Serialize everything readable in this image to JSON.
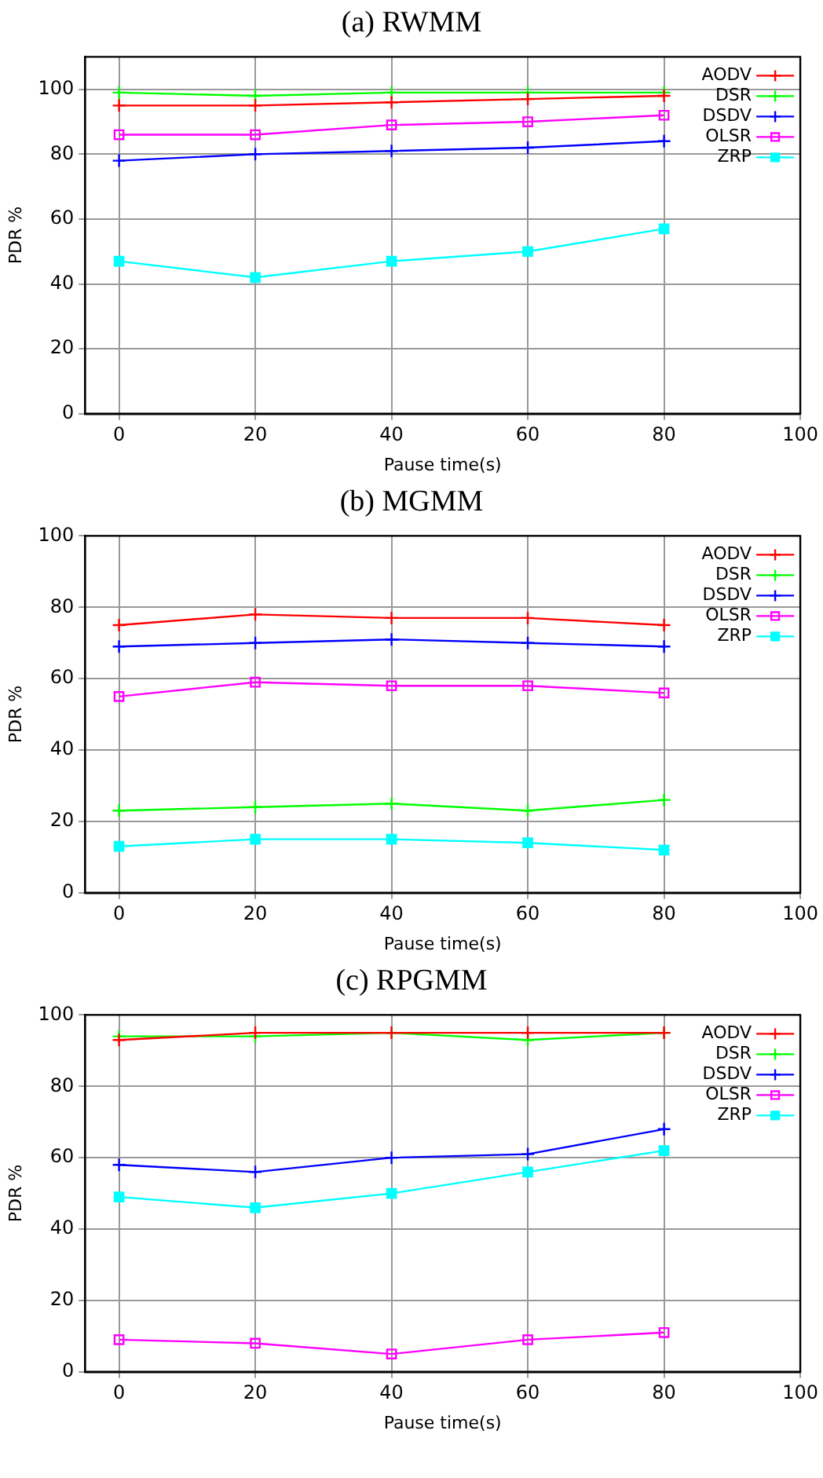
{
  "chart_data": [
    {
      "type": "line",
      "title": "(a) RWMM",
      "xlabel": "Pause time(s)",
      "ylabel": "PDR %",
      "x": [
        0,
        20,
        40,
        60,
        80
      ],
      "xlim": [
        -5,
        100
      ],
      "xticks": [
        0,
        20,
        40,
        60,
        80,
        100
      ],
      "ylim": [
        0,
        110
      ],
      "yticks": [
        0,
        20,
        40,
        60,
        80,
        100
      ],
      "grid": true,
      "legend": "top right",
      "line_style": "solid",
      "series": [
        {
          "name": "AODV",
          "color": "#ff0000",
          "marker": "cross",
          "values": [
            95,
            95,
            96,
            97,
            98
          ]
        },
        {
          "name": "DSR",
          "color": "#00ff00",
          "marker": "cross",
          "values": [
            99,
            98,
            99,
            99,
            99
          ]
        },
        {
          "name": "DSDV",
          "color": "#0000ff",
          "marker": "cross",
          "values": [
            78,
            80,
            81,
            82,
            84
          ]
        },
        {
          "name": "OLSR",
          "color": "#ff00ff",
          "marker": "square",
          "values": [
            86,
            86,
            89,
            90,
            92
          ]
        },
        {
          "name": "ZRP",
          "color": "#00ffff",
          "marker": "square",
          "values": [
            47,
            42,
            47,
            50,
            57
          ]
        }
      ]
    },
    {
      "type": "line",
      "title": "(b) MGMM",
      "xlabel": "Pause time(s)",
      "ylabel": "PDR %",
      "x": [
        0,
        20,
        40,
        60,
        80
      ],
      "xlim": [
        -5,
        100
      ],
      "xticks": [
        0,
        20,
        40,
        60,
        80,
        100
      ],
      "ylim": [
        0,
        100
      ],
      "yticks": [
        0,
        20,
        40,
        60,
        80,
        100
      ],
      "grid": true,
      "legend": "top right",
      "line_style": "solid",
      "series": [
        {
          "name": "AODV",
          "color": "#ff0000",
          "marker": "cross",
          "values": [
            75,
            78,
            77,
            77,
            75
          ]
        },
        {
          "name": "DSR",
          "color": "#00ff00",
          "marker": "cross",
          "values": [
            23,
            24,
            25,
            23,
            26
          ]
        },
        {
          "name": "DSDV",
          "color": "#0000ff",
          "marker": "cross",
          "values": [
            69,
            70,
            71,
            70,
            69
          ]
        },
        {
          "name": "OLSR",
          "color": "#ff00ff",
          "marker": "square",
          "values": [
            55,
            59,
            58,
            58,
            56
          ]
        },
        {
          "name": "ZRP",
          "color": "#00ffff",
          "marker": "square",
          "values": [
            13,
            15,
            15,
            14,
            12
          ]
        }
      ]
    },
    {
      "type": "line",
      "title": "(c) RPGMM",
      "xlabel": "Pause time(s)",
      "ylabel": "PDR %",
      "x": [
        0,
        20,
        40,
        60,
        80
      ],
      "xlim": [
        -5,
        100
      ],
      "xticks": [
        0,
        20,
        40,
        60,
        80,
        100
      ],
      "ylim": [
        0,
        100
      ],
      "yticks": [
        0,
        20,
        40,
        60,
        80,
        100
      ],
      "grid": true,
      "legend": "top right",
      "line_style": "solid",
      "series": [
        {
          "name": "AODV",
          "color": "#ff0000",
          "marker": "cross",
          "values": [
            93,
            95,
            95,
            95,
            95
          ]
        },
        {
          "name": "DSR",
          "color": "#00ff00",
          "marker": "cross",
          "values": [
            94,
            94,
            95,
            93,
            95
          ]
        },
        {
          "name": "DSDV",
          "color": "#0000ff",
          "marker": "cross",
          "values": [
            58,
            56,
            60,
            61,
            68
          ]
        },
        {
          "name": "OLSR",
          "color": "#ff00ff",
          "marker": "square",
          "values": [
            9,
            8,
            5,
            9,
            11
          ]
        },
        {
          "name": "ZRP",
          "color": "#00ffff",
          "marker": "square",
          "values": [
            49,
            46,
            50,
            56,
            62
          ]
        }
      ]
    }
  ]
}
